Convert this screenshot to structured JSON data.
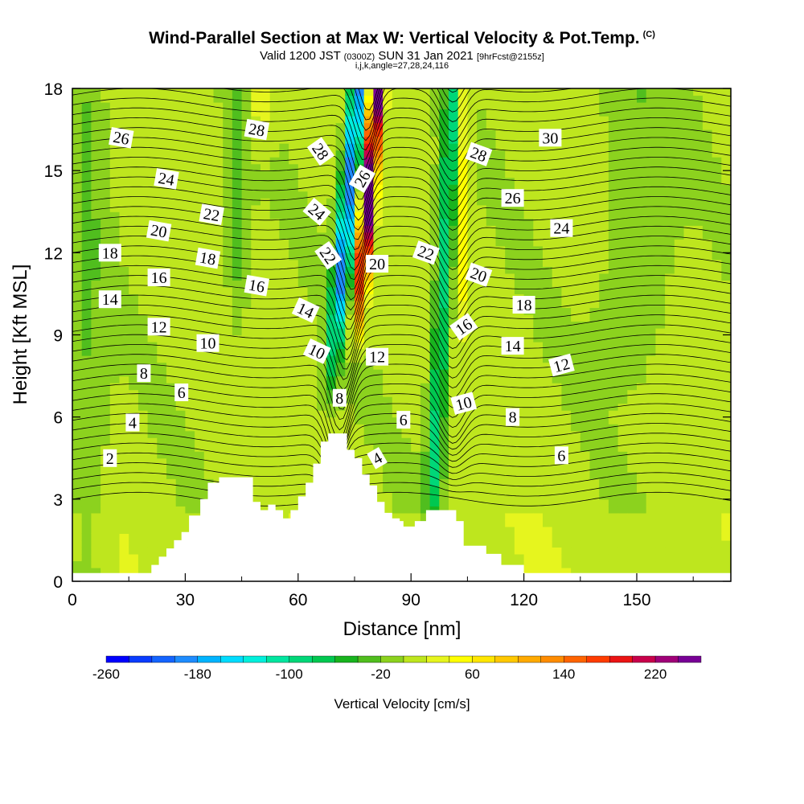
{
  "title": "Wind-Parallel Section at Max W: Vertical Velocity & Pot.Temp.",
  "title_mark": "(C)",
  "subtitle_pre": "Valid 1200 JST",
  "subtitle_mid": "(0300Z)",
  "subtitle_post": "SUN 31 Jan 2021",
  "subtitle_fcst": "[9hrFcst@2155z]",
  "subsubtitle": "i,j,k,angle=27,28,24,116",
  "chart_data": {
    "type": "contour cross-section",
    "xlabel": "Distance [nm]",
    "ylabel": "Height [Kft MSL]",
    "xlim": [
      0,
      175
    ],
    "ylim": [
      0,
      18
    ],
    "x_ticks": [
      "0",
      "30",
      "60",
      "90",
      "120",
      "150"
    ],
    "x_tick_values": [
      0,
      30,
      60,
      90,
      120,
      150
    ],
    "y_ticks": [
      "0",
      "3",
      "6",
      "9",
      "12",
      "15",
      "18"
    ],
    "y_tick_values": [
      0,
      3,
      6,
      9,
      12,
      15,
      18
    ],
    "colorbar": {
      "label": "Vertical Velocity [cm/s]",
      "tick_labels": [
        "-260",
        "-180",
        "-100",
        "-20",
        "60",
        "140",
        "220"
      ],
      "tick_values": [
        -260,
        -180,
        -100,
        -20,
        60,
        140,
        220
      ],
      "bins": [
        -260,
        -240,
        -220,
        -200,
        -180,
        -160,
        -140,
        -120,
        -100,
        -80,
        -60,
        -40,
        -20,
        0,
        20,
        40,
        60,
        80,
        100,
        120,
        140,
        160,
        180,
        200,
        220,
        240,
        260
      ],
      "colors": [
        "#0000ff",
        "#0a3cff",
        "#1464ff",
        "#1e8cff",
        "#00b4ff",
        "#00dcff",
        "#00f0dc",
        "#00e6a0",
        "#00d778",
        "#00c850",
        "#18b41e",
        "#50be1e",
        "#8cd21e",
        "#bee61e",
        "#e6f51e",
        "#ffff00",
        "#ffe600",
        "#ffc800",
        "#ffaa00",
        "#ff8c00",
        "#ff6400",
        "#ff3c00",
        "#eb1414",
        "#c8004b",
        "#a00078",
        "#780096"
      ]
    },
    "vertical_velocity_features": [
      {
        "kind": "downdraft",
        "x_center_nm": [
          66,
          76
        ],
        "height_kft": [
          7,
          18
        ],
        "min_cm_s": -190
      },
      {
        "kind": "updraft",
        "x_center_nm": [
          72,
          80
        ],
        "height_kft": [
          9,
          18
        ],
        "max_cm_s": 250
      },
      {
        "kind": "downdraft",
        "x_center_nm": [
          94,
          104
        ],
        "height_kft": [
          2,
          18
        ],
        "min_cm_s": -100
      },
      {
        "kind": "updraft",
        "x_center_nm": [
          100,
          104
        ],
        "height_kft": [
          9,
          18
        ],
        "max_cm_s": 60
      }
    ],
    "theta_labels": [
      {
        "text": "26",
        "x": 13,
        "y": 16.2,
        "rot": 10
      },
      {
        "text": "28",
        "x": 49,
        "y": 16.5,
        "rot": 10
      },
      {
        "text": "28",
        "x": 66,
        "y": 15.7,
        "rot": 55
      },
      {
        "text": "26",
        "x": 77,
        "y": 14.7,
        "rot": -60
      },
      {
        "text": "28",
        "x": 108,
        "y": 15.6,
        "rot": 20
      },
      {
        "text": "30",
        "x": 127,
        "y": 16.2,
        "rot": 0
      },
      {
        "text": "24",
        "x": 25,
        "y": 14.7,
        "rot": 10
      },
      {
        "text": "24",
        "x": 65,
        "y": 13.5,
        "rot": 40
      },
      {
        "text": "26",
        "x": 117,
        "y": 14.0,
        "rot": 0
      },
      {
        "text": "22",
        "x": 37,
        "y": 13.4,
        "rot": 10
      },
      {
        "text": "22",
        "x": 94,
        "y": 12.0,
        "rot": 20
      },
      {
        "text": "24",
        "x": 130,
        "y": 12.9,
        "rot": 0
      },
      {
        "text": "20",
        "x": 23,
        "y": 12.8,
        "rot": 10
      },
      {
        "text": "22",
        "x": 68,
        "y": 11.9,
        "rot": 55
      },
      {
        "text": "20",
        "x": 81,
        "y": 11.6,
        "rot": 0
      },
      {
        "text": "18",
        "x": 10,
        "y": 12.0,
        "rot": 0
      },
      {
        "text": "18",
        "x": 36,
        "y": 11.8,
        "rot": 10
      },
      {
        "text": "20",
        "x": 108,
        "y": 11.2,
        "rot": 20
      },
      {
        "text": "16",
        "x": 23,
        "y": 11.1,
        "rot": 0
      },
      {
        "text": "16",
        "x": 49,
        "y": 10.8,
        "rot": 10
      },
      {
        "text": "18",
        "x": 120,
        "y": 10.1,
        "rot": 0
      },
      {
        "text": "14",
        "x": 10,
        "y": 10.3,
        "rot": 0
      },
      {
        "text": "14",
        "x": 62,
        "y": 9.9,
        "rot": 25
      },
      {
        "text": "12",
        "x": 23,
        "y": 9.3,
        "rot": 0
      },
      {
        "text": "16",
        "x": 104,
        "y": 9.3,
        "rot": -35
      },
      {
        "text": "10",
        "x": 36,
        "y": 8.7,
        "rot": 0
      },
      {
        "text": "14",
        "x": 117,
        "y": 8.6,
        "rot": 0
      },
      {
        "text": "10",
        "x": 65,
        "y": 8.4,
        "rot": 25
      },
      {
        "text": "12",
        "x": 81,
        "y": 8.2,
        "rot": 0
      },
      {
        "text": "12",
        "x": 130,
        "y": 7.9,
        "rot": -15
      },
      {
        "text": "8",
        "x": 19,
        "y": 7.6,
        "rot": 0
      },
      {
        "text": "6",
        "x": 29,
        "y": 6.9,
        "rot": 0
      },
      {
        "text": "8",
        "x": 71,
        "y": 6.7,
        "rot": 0
      },
      {
        "text": "10",
        "x": 104,
        "y": 6.5,
        "rot": -15
      },
      {
        "text": "8",
        "x": 117,
        "y": 6.0,
        "rot": 0
      },
      {
        "text": "4",
        "x": 16,
        "y": 5.8,
        "rot": 0
      },
      {
        "text": "6",
        "x": 88,
        "y": 5.9,
        "rot": 0
      },
      {
        "text": "2",
        "x": 10,
        "y": 4.5,
        "rot": 0
      },
      {
        "text": "4",
        "x": 81,
        "y": 4.5,
        "rot": -30
      },
      {
        "text": "6",
        "x": 130,
        "y": 4.6,
        "rot": 0
      }
    ],
    "terrain_steps_kft": [
      [
        0,
        0.3
      ],
      [
        19,
        0.3
      ],
      [
        21,
        0.6
      ],
      [
        23,
        0.9
      ],
      [
        25,
        1.2
      ],
      [
        27,
        1.5
      ],
      [
        29,
        1.8
      ],
      [
        31,
        2.4
      ],
      [
        34,
        3.0
      ],
      [
        36,
        3.6
      ],
      [
        39,
        3.8
      ],
      [
        46,
        3.8
      ],
      [
        48,
        2.9
      ],
      [
        50,
        2.6
      ],
      [
        52,
        2.8
      ],
      [
        54,
        2.6
      ],
      [
        56,
        2.3
      ],
      [
        58,
        2.6
      ],
      [
        60,
        3.1
      ],
      [
        62,
        3.6
      ],
      [
        64,
        4.3
      ],
      [
        66,
        5.1
      ],
      [
        68,
        5.4
      ],
      [
        71,
        5.4
      ],
      [
        73,
        4.8
      ],
      [
        75,
        4.5
      ],
      [
        77,
        3.9
      ],
      [
        79,
        3.5
      ],
      [
        81,
        2.9
      ],
      [
        83,
        2.5
      ],
      [
        85,
        2.3
      ],
      [
        87,
        2.2
      ],
      [
        88,
        2.0
      ],
      [
        91,
        2.2
      ],
      [
        94,
        2.6
      ],
      [
        100,
        2.6
      ],
      [
        102,
        2.2
      ],
      [
        104,
        1.3
      ],
      [
        110,
        1.0
      ],
      [
        114,
        0.6
      ],
      [
        120,
        0.3
      ],
      [
        175,
        0.3
      ]
    ]
  }
}
